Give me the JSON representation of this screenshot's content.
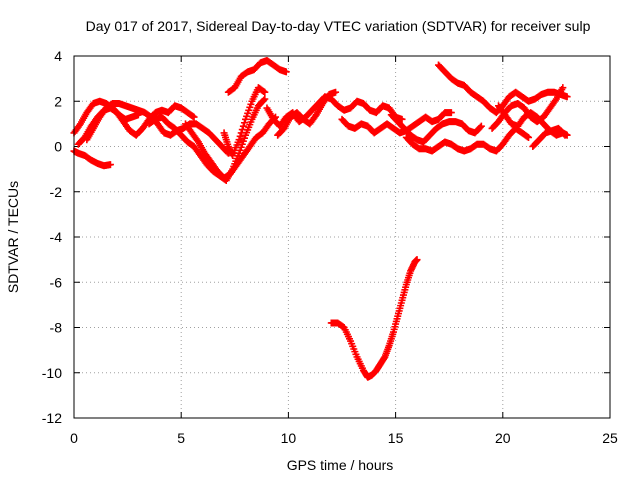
{
  "chart_data": {
    "type": "scatter",
    "title": "Day 017 of 2017, Sidereal Day-to-day VTEC variation (SDTVAR) for receiver sulp",
    "xlabel": "GPS time / hours",
    "ylabel": "SDTVAR / TECUs",
    "xlim": [
      0,
      25
    ],
    "ylim": [
      -12,
      4
    ],
    "xticks": [
      0,
      5,
      10,
      15,
      20,
      25
    ],
    "yticks": [
      -12,
      -10,
      -8,
      -6,
      -4,
      -2,
      0,
      2,
      4
    ],
    "grid": true,
    "marker": "+",
    "color": "#ff0000",
    "series": [
      {
        "name": "s1",
        "points": [
          [
            0.0,
            0.6
          ],
          [
            0.3,
            1.0
          ],
          [
            0.6,
            1.5
          ],
          [
            0.9,
            1.9
          ],
          [
            1.2,
            2.0
          ],
          [
            1.5,
            1.9
          ],
          [
            1.8,
            1.7
          ],
          [
            2.1,
            1.4
          ],
          [
            2.4,
            1.2
          ],
          [
            2.7,
            1.3
          ],
          [
            3.0,
            1.4
          ]
        ]
      },
      {
        "name": "s2",
        "points": [
          [
            0.0,
            -0.2
          ],
          [
            0.2,
            -0.3
          ],
          [
            0.5,
            -0.4
          ],
          [
            0.8,
            -0.6
          ],
          [
            1.1,
            -0.75
          ],
          [
            1.4,
            -0.85
          ],
          [
            1.7,
            -0.8
          ]
        ]
      },
      {
        "name": "s3",
        "points": [
          [
            0.2,
            0.1
          ],
          [
            0.5,
            0.4
          ],
          [
            0.8,
            0.9
          ],
          [
            1.1,
            1.3
          ],
          [
            1.4,
            1.6
          ],
          [
            1.7,
            1.7
          ],
          [
            2.0,
            1.5
          ],
          [
            2.3,
            1.1
          ],
          [
            2.6,
            0.7
          ],
          [
            2.9,
            0.5
          ],
          [
            3.2,
            0.8
          ],
          [
            3.5,
            1.2
          ],
          [
            3.8,
            1.5
          ],
          [
            4.1,
            1.6
          ],
          [
            4.4,
            1.5
          ],
          [
            4.7,
            1.8
          ],
          [
            5.0,
            1.7
          ],
          [
            5.3,
            1.5
          ],
          [
            5.6,
            1.3
          ]
        ]
      },
      {
        "name": "s4",
        "points": [
          [
            0.6,
            0.3
          ],
          [
            0.9,
            0.8
          ],
          [
            1.2,
            1.3
          ],
          [
            1.5,
            1.7
          ],
          [
            1.8,
            1.9
          ],
          [
            2.1,
            1.9
          ],
          [
            2.4,
            1.8
          ],
          [
            2.7,
            1.7
          ],
          [
            3.0,
            1.6
          ],
          [
            3.3,
            1.5
          ],
          [
            3.6,
            1.3
          ],
          [
            3.9,
            1.0
          ],
          [
            4.2,
            0.6
          ],
          [
            4.5,
            0.5
          ],
          [
            4.8,
            0.7
          ],
          [
            5.1,
            0.8
          ],
          [
            5.4,
            1.0
          ],
          [
            5.7,
            1.0
          ],
          [
            6.0,
            0.8
          ],
          [
            6.3,
            0.6
          ],
          [
            6.6,
            0.3
          ],
          [
            6.9,
            0.0
          ],
          [
            7.2,
            -0.3
          ]
        ]
      },
      {
        "name": "s5",
        "points": [
          [
            3.5,
            1.0
          ],
          [
            3.8,
            1.2
          ],
          [
            4.1,
            1.3
          ],
          [
            4.4,
            1.0
          ],
          [
            4.7,
            0.8
          ],
          [
            5.0,
            0.5
          ],
          [
            5.3,
            0.2
          ],
          [
            5.6,
            0.0
          ],
          [
            5.9,
            -0.4
          ],
          [
            6.2,
            -0.8
          ],
          [
            6.5,
            -1.1
          ],
          [
            6.8,
            -1.3
          ],
          [
            7.1,
            -1.5
          ],
          [
            7.4,
            -1.0
          ],
          [
            7.7,
            -0.3
          ],
          [
            8.0,
            0.5
          ],
          [
            8.3,
            1.2
          ],
          [
            8.6,
            1.8
          ],
          [
            8.9,
            2.1
          ]
        ]
      },
      {
        "name": "s6",
        "points": [
          [
            5.2,
            1.0
          ],
          [
            5.5,
            0.6
          ],
          [
            5.8,
            0.2
          ],
          [
            6.1,
            -0.3
          ],
          [
            6.4,
            -0.7
          ],
          [
            6.7,
            -1.1
          ],
          [
            7.0,
            -1.4
          ],
          [
            7.3,
            -1.2
          ],
          [
            7.6,
            -0.8
          ],
          [
            7.9,
            -0.4
          ],
          [
            8.2,
            0.0
          ],
          [
            8.5,
            0.4
          ],
          [
            8.8,
            0.6
          ],
          [
            9.1,
            1.0
          ],
          [
            9.4,
            1.3
          ]
        ]
      },
      {
        "name": "s7",
        "points": [
          [
            7.0,
            0.6
          ],
          [
            7.2,
            0.0
          ],
          [
            7.4,
            -0.4
          ],
          [
            7.7,
            0.3
          ],
          [
            8.0,
            1.2
          ],
          [
            8.3,
            2.0
          ],
          [
            8.6,
            2.6
          ],
          [
            8.9,
            2.4
          ]
        ]
      },
      {
        "name": "s8",
        "points": [
          [
            7.2,
            2.4
          ],
          [
            7.5,
            2.6
          ],
          [
            7.8,
            3.1
          ],
          [
            8.1,
            3.3
          ],
          [
            8.4,
            3.4
          ],
          [
            8.7,
            3.7
          ],
          [
            9.0,
            3.8
          ],
          [
            9.3,
            3.6
          ],
          [
            9.6,
            3.4
          ],
          [
            9.9,
            3.3
          ]
        ]
      },
      {
        "name": "s9",
        "points": [
          [
            9.0,
            1.7
          ],
          [
            9.3,
            1.2
          ],
          [
            9.6,
            0.9
          ],
          [
            9.9,
            1.3
          ],
          [
            10.2,
            1.5
          ],
          [
            10.5,
            1.1
          ],
          [
            10.8,
            1.3
          ],
          [
            11.1,
            1.6
          ],
          [
            11.4,
            1.9
          ],
          [
            11.7,
            2.2
          ],
          [
            12.0,
            2.1
          ],
          [
            12.3,
            1.8
          ],
          [
            12.6,
            1.6
          ],
          [
            12.9,
            1.7
          ],
          [
            13.2,
            2.0
          ],
          [
            13.5,
            1.9
          ],
          [
            13.8,
            1.6
          ],
          [
            14.1,
            1.5
          ],
          [
            14.4,
            1.8
          ],
          [
            14.7,
            1.7
          ],
          [
            15.0,
            1.3
          ],
          [
            15.3,
            1.2
          ]
        ]
      },
      {
        "name": "s10",
        "points": [
          [
            9.5,
            0.5
          ],
          [
            9.8,
            0.8
          ],
          [
            10.1,
            1.3
          ],
          [
            10.4,
            1.5
          ],
          [
            10.7,
            1.2
          ],
          [
            11.0,
            1.0
          ],
          [
            11.3,
            1.4
          ],
          [
            11.6,
            1.9
          ],
          [
            11.9,
            2.3
          ],
          [
            12.2,
            2.4
          ]
        ]
      },
      {
        "name": "s11",
        "points": [
          [
            12.5,
            1.2
          ],
          [
            12.8,
            0.9
          ],
          [
            13.1,
            0.8
          ],
          [
            13.4,
            1.0
          ],
          [
            13.7,
            0.9
          ],
          [
            14.0,
            0.6
          ],
          [
            14.3,
            0.8
          ],
          [
            14.6,
            1.0
          ],
          [
            14.9,
            0.8
          ],
          [
            15.2,
            0.6
          ],
          [
            15.5,
            0.7
          ],
          [
            15.8,
            0.9
          ],
          [
            16.1,
            1.1
          ],
          [
            16.4,
            1.3
          ],
          [
            16.7,
            1.1
          ],
          [
            17.0,
            1.2
          ],
          [
            17.3,
            1.5
          ],
          [
            17.6,
            1.5
          ]
        ]
      },
      {
        "name": "s12",
        "points": [
          [
            14.8,
            1.4
          ],
          [
            15.1,
            1.1
          ],
          [
            15.4,
            0.8
          ],
          [
            15.7,
            0.5
          ],
          [
            16.0,
            0.3
          ],
          [
            16.3,
            0.2
          ],
          [
            16.6,
            0.5
          ],
          [
            16.9,
            0.8
          ],
          [
            17.2,
            1.0
          ],
          [
            17.5,
            1.1
          ],
          [
            17.8,
            1.1
          ],
          [
            18.1,
            1.0
          ],
          [
            18.4,
            0.7
          ],
          [
            18.7,
            0.6
          ],
          [
            19.0,
            0.9
          ]
        ]
      },
      {
        "name": "s13",
        "points": [
          [
            15.5,
            0.4
          ],
          [
            15.8,
            0.1
          ],
          [
            16.1,
            -0.1
          ],
          [
            16.4,
            -0.1
          ],
          [
            16.7,
            -0.2
          ],
          [
            17.0,
            0.0
          ],
          [
            17.3,
            0.2
          ],
          [
            17.6,
            0.1
          ],
          [
            17.9,
            -0.1
          ],
          [
            18.2,
            -0.2
          ],
          [
            18.5,
            -0.1
          ],
          [
            18.8,
            0.1
          ],
          [
            19.1,
            0.1
          ],
          [
            19.4,
            -0.1
          ],
          [
            19.7,
            -0.2
          ],
          [
            20.0,
            0.1
          ],
          [
            20.3,
            0.5
          ],
          [
            20.6,
            0.8
          ],
          [
            20.9,
            0.6
          ],
          [
            21.2,
            0.4
          ]
        ]
      },
      {
        "name": "s14",
        "points": [
          [
            17.0,
            3.6
          ],
          [
            17.3,
            3.3
          ],
          [
            17.6,
            3.0
          ],
          [
            17.9,
            2.8
          ],
          [
            18.2,
            2.7
          ],
          [
            18.5,
            2.4
          ],
          [
            18.8,
            2.2
          ],
          [
            19.1,
            2.0
          ],
          [
            19.4,
            1.7
          ],
          [
            19.7,
            1.5
          ],
          [
            20.0,
            1.8
          ],
          [
            20.3,
            2.2
          ],
          [
            20.6,
            2.4
          ],
          [
            20.9,
            2.2
          ],
          [
            21.2,
            2.0
          ],
          [
            21.5,
            2.1
          ],
          [
            21.8,
            2.3
          ],
          [
            22.1,
            2.4
          ],
          [
            22.4,
            2.4
          ],
          [
            22.7,
            2.3
          ],
          [
            23.0,
            2.2
          ]
        ]
      },
      {
        "name": "s15",
        "points": [
          [
            19.5,
            0.8
          ],
          [
            19.8,
            1.1
          ],
          [
            20.1,
            1.5
          ],
          [
            20.4,
            1.8
          ],
          [
            20.7,
            1.9
          ],
          [
            21.0,
            1.7
          ],
          [
            21.3,
            1.3
          ],
          [
            21.6,
            1.1
          ],
          [
            21.9,
            1.3
          ],
          [
            22.2,
            1.7
          ],
          [
            22.5,
            2.1
          ],
          [
            22.8,
            2.6
          ]
        ]
      },
      {
        "name": "s16",
        "points": [
          [
            19.8,
            1.8
          ],
          [
            20.1,
            1.4
          ],
          [
            20.4,
            1.0
          ],
          [
            20.7,
            0.9
          ],
          [
            21.0,
            1.3
          ],
          [
            21.3,
            1.5
          ],
          [
            21.6,
            1.3
          ],
          [
            21.9,
            1.0
          ],
          [
            22.2,
            0.7
          ],
          [
            22.5,
            0.5
          ],
          [
            22.8,
            0.6
          ],
          [
            23.0,
            0.5
          ]
        ]
      },
      {
        "name": "s17",
        "points": [
          [
            21.4,
            0.0
          ],
          [
            21.7,
            0.3
          ],
          [
            22.0,
            0.6
          ],
          [
            22.3,
            0.7
          ],
          [
            22.6,
            0.8
          ],
          [
            22.9,
            0.5
          ]
        ]
      },
      {
        "name": "s18",
        "points": [
          [
            12.0,
            -7.8
          ],
          [
            12.3,
            -7.8
          ],
          [
            12.6,
            -8.0
          ],
          [
            12.9,
            -8.6
          ],
          [
            13.2,
            -9.3
          ],
          [
            13.5,
            -9.9
          ],
          [
            13.7,
            -10.2
          ],
          [
            13.9,
            -10.1
          ],
          [
            14.1,
            -9.9
          ],
          [
            14.3,
            -9.6
          ],
          [
            14.5,
            -9.3
          ],
          [
            14.7,
            -8.8
          ],
          [
            14.9,
            -8.2
          ],
          [
            15.1,
            -7.5
          ],
          [
            15.3,
            -6.8
          ],
          [
            15.5,
            -6.1
          ],
          [
            15.7,
            -5.5
          ],
          [
            15.9,
            -5.1
          ],
          [
            16.0,
            -5.0
          ]
        ]
      }
    ]
  }
}
